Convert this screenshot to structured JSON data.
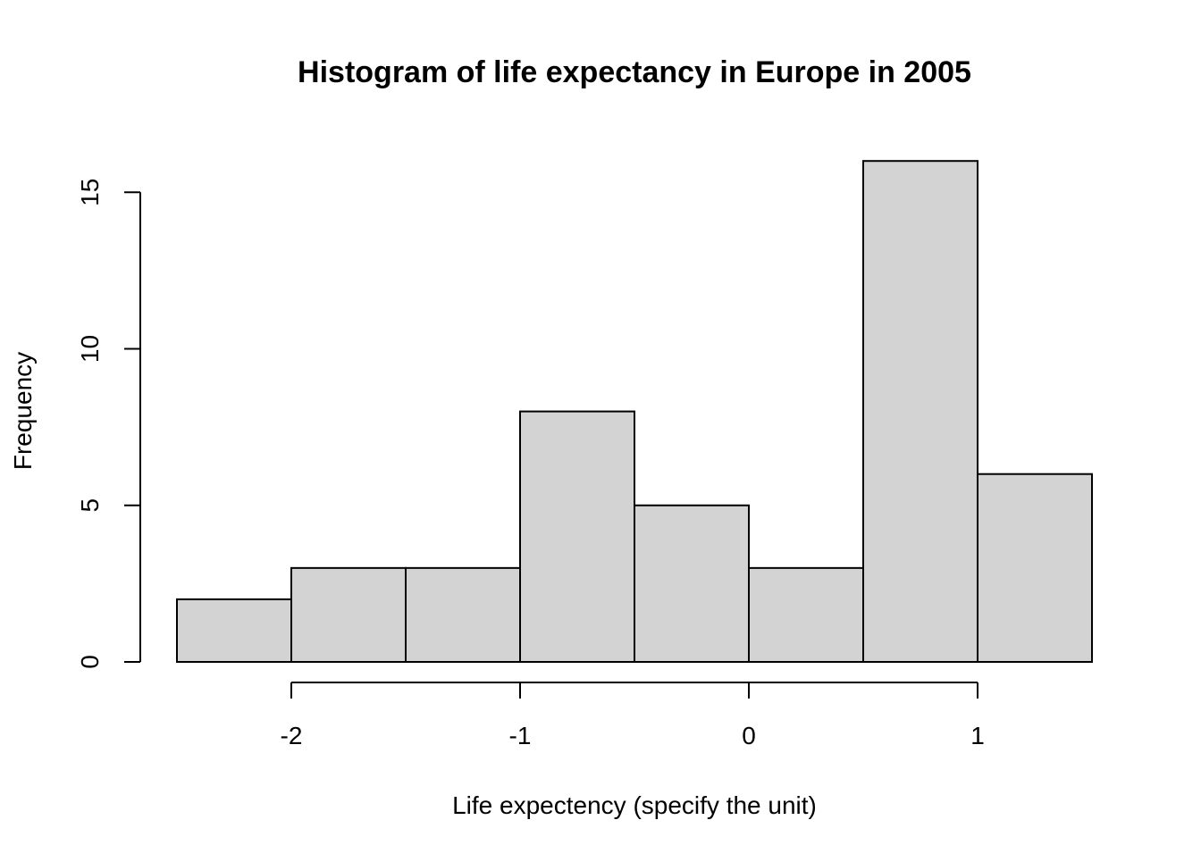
{
  "chart_data": {
    "type": "bar",
    "title": "Histogram of life expectancy in Europe in 2005",
    "xlabel": "Life expectency (specify the unit)",
    "ylabel": "Frequency",
    "bins": [
      {
        "start": -2.5,
        "end": -2.0,
        "count": 2
      },
      {
        "start": -2.0,
        "end": -1.5,
        "count": 3
      },
      {
        "start": -1.5,
        "end": -1.0,
        "count": 3
      },
      {
        "start": -1.0,
        "end": -0.5,
        "count": 8
      },
      {
        "start": -0.5,
        "end": 0.0,
        "count": 5
      },
      {
        "start": 0.0,
        "end": 0.5,
        "count": 3
      },
      {
        "start": 0.5,
        "end": 1.0,
        "count": 16
      },
      {
        "start": 1.0,
        "end": 1.5,
        "count": 6
      }
    ],
    "x_ticks": [
      "-2",
      "-1",
      "0",
      "1"
    ],
    "y_ticks": [
      "0",
      "5",
      "10",
      "15"
    ],
    "xlim": [
      -2.5,
      1.5
    ],
    "ylim": [
      0,
      16
    ],
    "grid": false
  }
}
